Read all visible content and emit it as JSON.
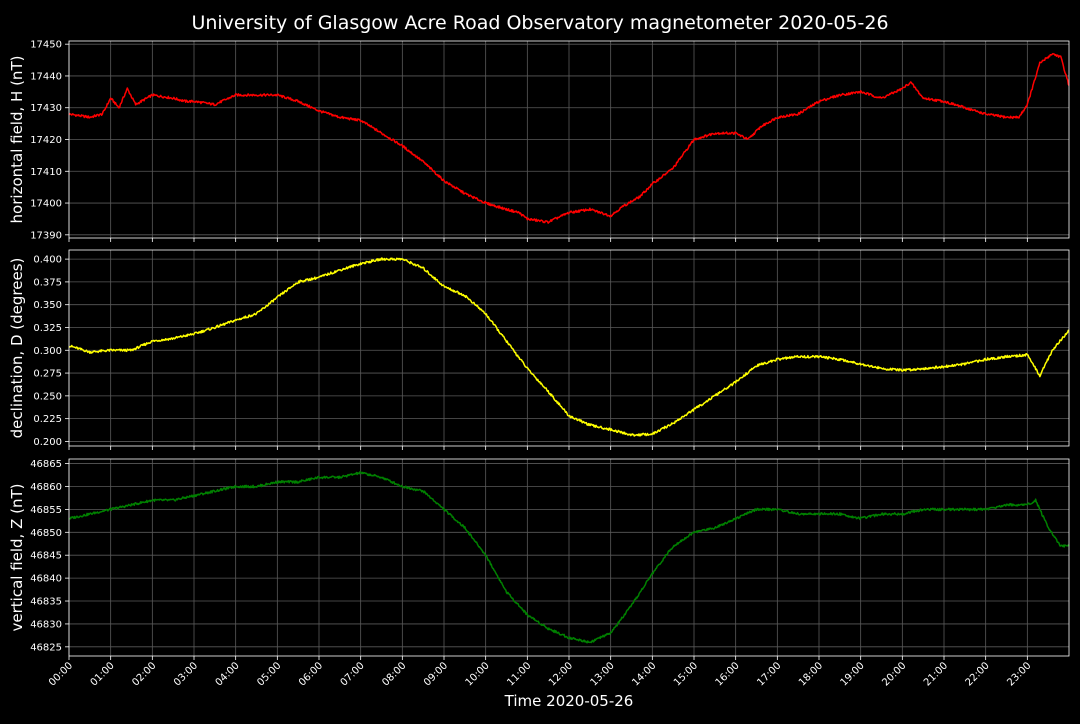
{
  "chart_data": {
    "type": "line",
    "title": "University of Glasgow Acre Road Observatory magnetometer 2020-05-26",
    "xlabel": "Time 2020-05-26",
    "x_tick_labels": [
      "00:00",
      "01:00",
      "02:00",
      "03:00",
      "04:00",
      "05:00",
      "06:00",
      "07:00",
      "08:00",
      "09:00",
      "10:00",
      "11:00",
      "12:00",
      "13:00",
      "14:00",
      "15:00",
      "16:00",
      "17:00",
      "18:00",
      "19:00",
      "20:00",
      "21:00",
      "22:00",
      "23:00"
    ],
    "x_hours_range": [
      0,
      24
    ],
    "grid": true,
    "background": "#000000",
    "panels": [
      {
        "ylabel": "horizontal field, H (nT)",
        "color": "#ff0000",
        "ylim": [
          17389,
          17451
        ],
        "yticks": [
          17390,
          17400,
          17410,
          17420,
          17430,
          17440,
          17450
        ],
        "ytick_labels": [
          "17390",
          "17400",
          "17410",
          "17420",
          "17430",
          "17440",
          "17450"
        ],
        "series": {
          "x_hours": [
            0,
            0.5,
            0.8,
            1.0,
            1.2,
            1.4,
            1.6,
            2.0,
            2.5,
            2.8,
            3.0,
            3.5,
            4.0,
            4.5,
            5.0,
            5.5,
            6.0,
            6.5,
            7.0,
            7.5,
            8.0,
            8.5,
            9.0,
            9.5,
            10.0,
            10.5,
            10.8,
            11.0,
            11.5,
            12.0,
            12.5,
            13.0,
            13.3,
            13.7,
            14.0,
            14.5,
            15.0,
            15.5,
            16.0,
            16.3,
            16.6,
            17.0,
            17.5,
            18.0,
            18.5,
            19.0,
            19.5,
            20.0,
            20.2,
            20.5,
            21.0,
            21.5,
            22.0,
            22.5,
            22.8,
            23.0,
            23.3,
            23.6,
            23.8,
            24.0
          ],
          "values": [
            17428,
            17427,
            17428,
            17433,
            17430,
            17436,
            17431,
            17434,
            17433,
            17432,
            17432,
            17431,
            17434,
            17434,
            17434,
            17432,
            17429,
            17427,
            17426,
            17422,
            17418,
            17413,
            17407,
            17403,
            17400,
            17398,
            17397,
            17395,
            17394,
            17397,
            17398,
            17396,
            17399,
            17402,
            17406,
            17411,
            17420,
            17422,
            17422,
            17420,
            17424,
            17427,
            17428,
            17432,
            17434,
            17435,
            17433,
            17436,
            17438,
            17433,
            17432,
            17430,
            17428,
            17427,
            17427,
            17431,
            17444,
            17447,
            17446,
            17437
          ]
        }
      },
      {
        "ylabel": "declination, D (degrees)",
        "color": "#ffff00",
        "ylim": [
          0.195,
          0.41
        ],
        "yticks": [
          0.2,
          0.225,
          0.25,
          0.275,
          0.3,
          0.325,
          0.35,
          0.375,
          0.4
        ],
        "ytick_labels": [
          "0.200",
          "0.225",
          "0.250",
          "0.275",
          "0.300",
          "0.325",
          "0.350",
          "0.375",
          "0.400"
        ],
        "series": {
          "x_hours": [
            0,
            0.5,
            1.0,
            1.5,
            2.0,
            2.5,
            3.0,
            3.5,
            4.0,
            4.5,
            5.0,
            5.5,
            6.0,
            6.5,
            7.0,
            7.5,
            8.0,
            8.5,
            9.0,
            9.5,
            10.0,
            10.5,
            11.0,
            11.5,
            12.0,
            12.5,
            13.0,
            13.5,
            14.0,
            14.5,
            15.0,
            15.5,
            16.0,
            16.5,
            17.0,
            17.5,
            18.0,
            18.5,
            19.0,
            19.5,
            20.0,
            20.5,
            21.0,
            21.5,
            22.0,
            22.5,
            23.0,
            23.3,
            23.6,
            24.0
          ],
          "values": [
            0.305,
            0.298,
            0.3,
            0.3,
            0.31,
            0.313,
            0.318,
            0.325,
            0.333,
            0.34,
            0.358,
            0.375,
            0.38,
            0.388,
            0.395,
            0.4,
            0.4,
            0.39,
            0.37,
            0.36,
            0.34,
            0.31,
            0.28,
            0.255,
            0.228,
            0.218,
            0.213,
            0.207,
            0.208,
            0.22,
            0.235,
            0.25,
            0.265,
            0.283,
            0.29,
            0.293,
            0.293,
            0.29,
            0.285,
            0.28,
            0.278,
            0.28,
            0.282,
            0.285,
            0.29,
            0.293,
            0.295,
            0.272,
            0.3,
            0.322
          ]
        }
      },
      {
        "ylabel": "vertical field, Z (nT)",
        "color": "#008000",
        "ylim": [
          46823,
          46866
        ],
        "yticks": [
          46825,
          46830,
          46835,
          46840,
          46845,
          46850,
          46855,
          46860,
          46865
        ],
        "ytick_labels": [
          "46825",
          "46830",
          "46835",
          "46840",
          "46845",
          "46850",
          "46855",
          "46860",
          "46865"
        ],
        "series": {
          "x_hours": [
            0,
            0.5,
            1.0,
            1.5,
            2.0,
            2.5,
            3.0,
            3.5,
            4.0,
            4.5,
            5.0,
            5.5,
            6.0,
            6.5,
            7.0,
            7.5,
            8.0,
            8.5,
            9.0,
            9.5,
            10.0,
            10.5,
            11.0,
            11.5,
            12.0,
            12.5,
            13.0,
            13.5,
            14.0,
            14.5,
            15.0,
            15.5,
            16.0,
            16.5,
            17.0,
            17.5,
            18.0,
            18.5,
            19.0,
            19.5,
            20.0,
            20.5,
            21.0,
            21.5,
            22.0,
            22.5,
            23.0,
            23.2,
            23.5,
            23.8,
            24.0
          ],
          "values": [
            46853,
            46854,
            46855,
            46856,
            46857,
            46857,
            46858,
            46859,
            46860,
            46860,
            46861,
            46861,
            46862,
            46862,
            46863,
            46862,
            46860,
            46859,
            46855,
            46851,
            46845,
            46837,
            46832,
            46829,
            46827,
            46826,
            46828,
            46834,
            46841,
            46847,
            46850,
            46851,
            46853,
            46855,
            46855,
            46854,
            46854,
            46854,
            46853,
            46854,
            46854,
            46855,
            46855,
            46855,
            46855,
            46856,
            46856,
            46857,
            46851,
            46847,
            46847
          ]
        }
      }
    ]
  }
}
